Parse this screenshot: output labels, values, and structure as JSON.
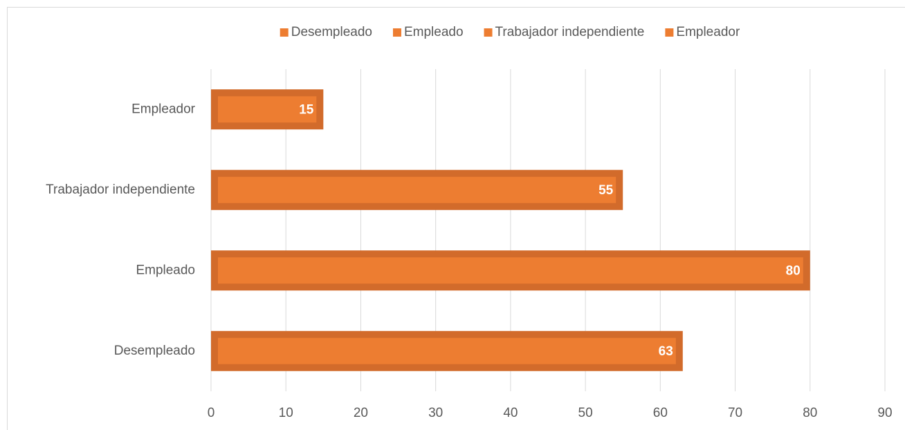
{
  "chart_data": {
    "type": "barh",
    "categories": [
      "Desempleado",
      "Empleado",
      "Trabajador independiente",
      "Empleador"
    ],
    "values": [
      63,
      80,
      55,
      15
    ],
    "color": "#ed7d31",
    "edgecolor": "#d26b2b",
    "xlim": [
      0,
      90
    ],
    "xticks": [
      0,
      10,
      20,
      30,
      40,
      50,
      60,
      70,
      80,
      90
    ],
    "grid": true,
    "legend": "top"
  }
}
